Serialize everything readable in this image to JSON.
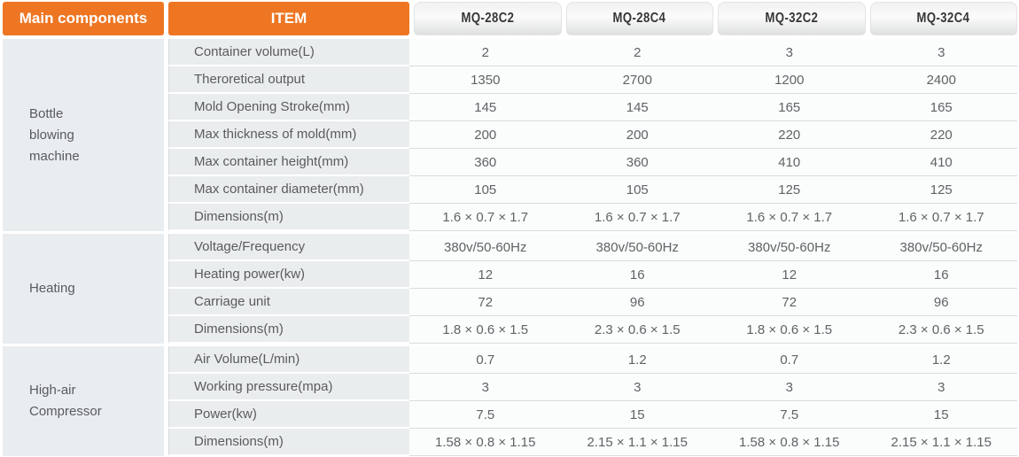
{
  "header": {
    "main_label": "Main components",
    "item_label": "ITEM",
    "models": [
      "MQ-28C2",
      "MQ-28C4",
      "MQ-32C2",
      "MQ-32C4"
    ]
  },
  "groups": [
    {
      "label": "Bottle blowing machine",
      "rows": [
        {
          "item": "Container volume(L)",
          "values": [
            "2",
            "2",
            "3",
            "3"
          ]
        },
        {
          "item": "Theroretical output",
          "values": [
            "1350",
            "2700",
            "1200",
            "2400"
          ]
        },
        {
          "item": "Mold Opening Stroke(mm)",
          "values": [
            "145",
            "145",
            "165",
            "165"
          ]
        },
        {
          "item": "Max thickness of mold(mm)",
          "values": [
            "200",
            "200",
            "220",
            "220"
          ]
        },
        {
          "item": "Max container height(mm)",
          "values": [
            "360",
            "360",
            "410",
            "410"
          ]
        },
        {
          "item": "Max container diameter(mm)",
          "values": [
            "105",
            "105",
            "125",
            "125"
          ]
        },
        {
          "item": "Dimensions(m)",
          "values": [
            "1.6 × 0.7 × 1.7",
            "1.6 × 0.7 × 1.7",
            "1.6 × 0.7 × 1.7",
            "1.6 × 0.7 × 1.7"
          ]
        }
      ]
    },
    {
      "label": "Heating",
      "rows": [
        {
          "item": "Voltage/Frequency",
          "values": [
            "380v/50-60Hz",
            "380v/50-60Hz",
            "380v/50-60Hz",
            "380v/50-60Hz"
          ]
        },
        {
          "item": "Heating power(kw)",
          "values": [
            "12",
            "16",
            "12",
            "16"
          ]
        },
        {
          "item": "Carriage unit",
          "values": [
            "72",
            "96",
            "72",
            "96"
          ]
        },
        {
          "item": "Dimensions(m)",
          "values": [
            "1.8 × 0.6 × 1.5",
            "2.3 × 0.6 × 1.5",
            "1.8 × 0.6 × 1.5",
            "2.3 × 0.6 × 1.5"
          ]
        }
      ]
    },
    {
      "label": "High-air Compressor",
      "rows": [
        {
          "item": "Air Volume(L/min)",
          "values": [
            "0.7",
            "1.2",
            "0.7",
            "1.2"
          ]
        },
        {
          "item": "Working pressure(mpa)",
          "values": [
            "3",
            "3",
            "3",
            "3"
          ]
        },
        {
          "item": "Power(kw)",
          "values": [
            "7.5",
            "15",
            "7.5",
            "15"
          ]
        },
        {
          "item": "Dimensions(m)",
          "values": [
            "1.58 × 0.8 × 1.15",
            "2.15 × 1.1 × 1.15",
            "1.58 × 0.8 × 1.15",
            "2.15 × 1.1 × 1.15"
          ]
        }
      ]
    }
  ],
  "colors": {
    "accent_orange": "#EE7623",
    "header_text": "#FFFFFF",
    "tab_text": "#363638",
    "body_text": "#595B5E",
    "label_column_bg": "#E9EDF0",
    "item_column_bg": "#EAEDEE",
    "value_column_bg": "#FBFCFC",
    "separator": "#D9DCDE"
  }
}
